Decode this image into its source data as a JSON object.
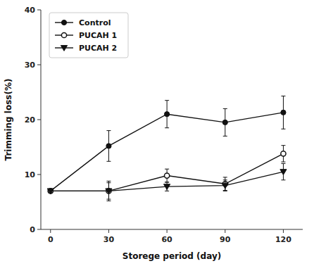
{
  "chart_data": {
    "type": "line",
    "x": [
      0,
      30,
      60,
      90,
      120
    ],
    "series": [
      {
        "name": "Control",
        "color": "#111111",
        "marker": "circle",
        "values": [
          7.0,
          15.2,
          21.0,
          19.5,
          21.3
        ],
        "errors": [
          0.3,
          2.8,
          2.5,
          2.5,
          3.0
        ]
      },
      {
        "name": "PUCAH 1",
        "color": "#111111",
        "marker": "open-circle",
        "values": [
          7.0,
          7.0,
          9.8,
          8.3,
          13.8
        ],
        "errors": [
          0.3,
          1.8,
          1.2,
          1.2,
          1.5
        ]
      },
      {
        "name": "PUCAH 2",
        "color": "#111111",
        "marker": "triangle-down",
        "values": [
          7.0,
          7.0,
          7.8,
          8.0,
          10.5
        ],
        "errors": [
          0.3,
          1.5,
          0.8,
          1.0,
          1.5
        ]
      }
    ],
    "xlabel": "Storege period (day)",
    "ylabel": "Trimming loss(%)",
    "xlim": [
      -5,
      130
    ],
    "ylim": [
      0,
      40
    ],
    "xticks": [
      0,
      30,
      60,
      90,
      120
    ],
    "yticks": [
      0,
      10,
      20,
      30,
      40
    ],
    "legend": "upper left",
    "grid": false
  }
}
